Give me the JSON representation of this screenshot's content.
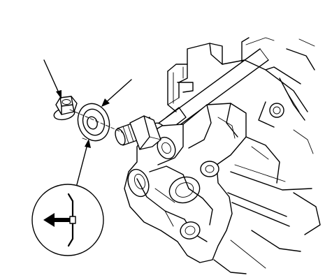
{
  "diagram": {
    "parts": [
      {
        "id": "nut",
        "icon": "flange-nut-icon"
      },
      {
        "id": "washer",
        "icon": "washer-icon"
      },
      {
        "id": "stud",
        "icon": "threaded-stud-icon"
      },
      {
        "id": "assembly",
        "icon": "suspension-assembly-icon"
      }
    ],
    "detail_symbol": {
      "icon": "washer-orientation-arrow-icon",
      "direction": "left"
    },
    "callout_leaders": 3,
    "colors": {
      "line": "#000000",
      "background": "#ffffff"
    }
  }
}
